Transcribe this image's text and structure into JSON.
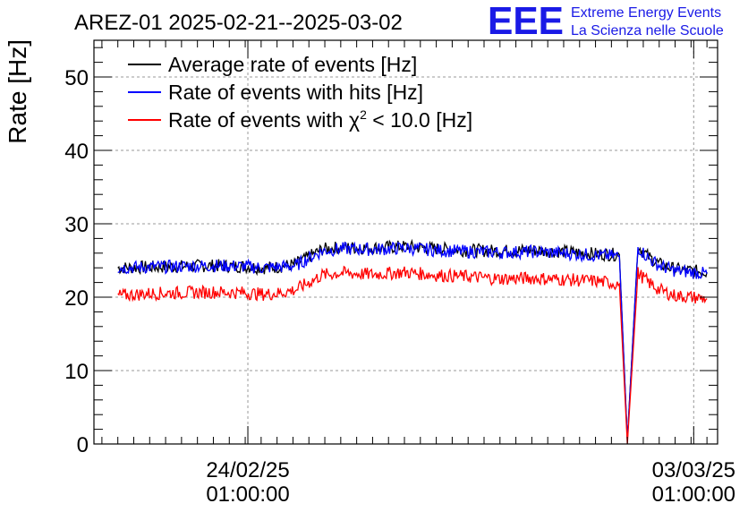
{
  "chart_data": {
    "type": "line",
    "title": "AREZ-01 2025-02-21--2025-03-02",
    "ylabel": "Rate [Hz]",
    "xlabel": "",
    "ylim": [
      0,
      55
    ],
    "y_ticks": [
      0,
      10,
      20,
      30,
      40,
      50
    ],
    "x_domain_days": [
      "2025-02-21 15:00",
      "2025-03-03 10:00"
    ],
    "x_ticks": [
      {
        "date": "2025-02-24 01:00",
        "line1": "24/02/25",
        "line2": "01:00:00"
      },
      {
        "date": "2025-03-03 01:00",
        "line1": "03/03/25",
        "line2": "01:00:00"
      }
    ],
    "grid": true,
    "legend_position": "top-left",
    "series": [
      {
        "name": "Average rate of events [Hz]",
        "color": "#000000",
        "x": [
          "2025-02-22 00:00",
          "2025-02-22 12:00",
          "2025-02-23 00:00",
          "2025-02-23 12:00",
          "2025-02-24 00:00",
          "2025-02-24 06:00",
          "2025-02-24 12:00",
          "2025-02-24 19:00",
          "2025-02-25 05:00",
          "2025-02-25 12:00",
          "2025-02-26 00:00",
          "2025-02-26 12:00",
          "2025-02-27 00:00",
          "2025-02-27 12:00",
          "2025-02-28 00:00",
          "2025-02-28 12:00",
          "2025-03-01 00:00",
          "2025-03-01 12:00",
          "2025-03-01 21:00",
          "2025-03-02 00:00",
          "2025-03-02 04:00",
          "2025-03-02 08:00",
          "2025-03-02 12:00",
          "2025-03-02 18:00",
          "2025-03-03 00:00",
          "2025-03-03 06:00"
        ],
        "y": [
          24.0,
          24.1,
          24.2,
          24.3,
          24.2,
          24.0,
          24.1,
          24.5,
          26.5,
          26.8,
          26.7,
          26.9,
          26.6,
          26.4,
          26.3,
          26.4,
          26.2,
          25.9,
          25.8,
          0.5,
          27.0,
          25.5,
          24.5,
          23.8,
          23.6,
          23.4
        ]
      },
      {
        "name": "Rate of events with hits [Hz]",
        "color": "#0000ff",
        "x": [
          "2025-02-22 00:00",
          "2025-02-22 12:00",
          "2025-02-23 00:00",
          "2025-02-23 12:00",
          "2025-02-24 00:00",
          "2025-02-24 06:00",
          "2025-02-24 12:00",
          "2025-02-24 19:00",
          "2025-02-25 05:00",
          "2025-02-25 12:00",
          "2025-02-26 00:00",
          "2025-02-26 12:00",
          "2025-02-27 00:00",
          "2025-02-27 12:00",
          "2025-02-28 00:00",
          "2025-02-28 12:00",
          "2025-03-01 00:00",
          "2025-03-01 12:00",
          "2025-03-01 21:00",
          "2025-03-02 00:00",
          "2025-03-02 04:00",
          "2025-03-02 08:00",
          "2025-03-02 12:00",
          "2025-03-02 18:00",
          "2025-03-03 00:00",
          "2025-03-03 06:00"
        ],
        "y": [
          24.0,
          24.1,
          24.2,
          24.3,
          24.2,
          24.0,
          24.1,
          24.3,
          26.3,
          26.6,
          26.5,
          26.7,
          26.4,
          26.2,
          26.1,
          26.2,
          26.0,
          25.7,
          25.6,
          0.5,
          26.8,
          25.3,
          24.3,
          23.6,
          23.4,
          23.2
        ]
      },
      {
        "name": "Rate of events with χ² < 10.0 [Hz]",
        "legend_main": "Rate of events with χ",
        "legend_sup": "2",
        "legend_tail": " < 10.0 [Hz]",
        "color": "#ff0000",
        "x": [
          "2025-02-22 00:00",
          "2025-02-22 12:00",
          "2025-02-23 00:00",
          "2025-02-23 12:00",
          "2025-02-24 00:00",
          "2025-02-24 06:00",
          "2025-02-24 12:00",
          "2025-02-24 19:00",
          "2025-02-25 05:00",
          "2025-02-25 12:00",
          "2025-02-26 00:00",
          "2025-02-26 12:00",
          "2025-02-27 00:00",
          "2025-02-27 12:00",
          "2025-02-28 00:00",
          "2025-02-28 12:00",
          "2025-03-01 00:00",
          "2025-03-01 12:00",
          "2025-03-01 21:00",
          "2025-03-02 00:00",
          "2025-03-02 04:00",
          "2025-03-02 08:00",
          "2025-03-02 12:00",
          "2025-03-02 18:00",
          "2025-03-03 00:00",
          "2025-03-03 06:00"
        ],
        "y": [
          20.2,
          20.5,
          20.6,
          20.7,
          20.6,
          20.4,
          20.5,
          21.0,
          23.0,
          23.3,
          23.1,
          23.4,
          23.0,
          22.8,
          22.5,
          22.6,
          22.4,
          22.2,
          21.8,
          0.0,
          23.3,
          22.0,
          21.0,
          20.2,
          20.0,
          19.8
        ]
      }
    ]
  },
  "logo": {
    "mark": "EEE",
    "line1": "Extreme Energy Events",
    "line2": "La Scienza nelle Scuole",
    "color": "#1a1ae6"
  }
}
